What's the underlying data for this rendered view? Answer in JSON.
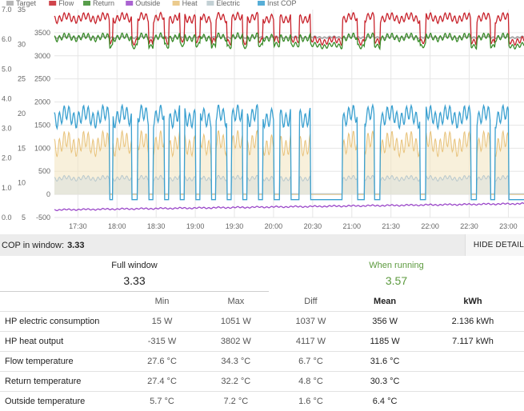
{
  "chart_data": {
    "type": "line",
    "legend": [
      {
        "name": "Target",
        "color": "#aaaaaa"
      },
      {
        "name": "Flow",
        "color": "#c8232c"
      },
      {
        "name": "Return",
        "color": "#3a8c2a"
      },
      {
        "name": "Outside",
        "color": "#9b48c9"
      },
      {
        "name": "Heat",
        "color": "#e8c27a"
      },
      {
        "name": "Electric",
        "color": "#b8c8cc"
      },
      {
        "name": "Inst COP",
        "color": "#3aa0d0"
      }
    ],
    "x_ticks": [
      "17:30",
      "18:00",
      "18:30",
      "19:00",
      "19:30",
      "20:00",
      "20:30",
      "21:00",
      "21:30",
      "22:00",
      "22:30",
      "23:00"
    ],
    "x_range": [
      "17:12",
      "23:12"
    ],
    "y_axis_cop": {
      "range": [
        0,
        7
      ],
      "ticks": [
        "0.0",
        "1.0",
        "2.0",
        "3.0",
        "4.0",
        "5.0",
        "6.0",
        "7.0"
      ]
    },
    "y_axis_temp": {
      "range": [
        5,
        35
      ],
      "ticks": [
        "5",
        "10",
        "15",
        "20",
        "25",
        "30",
        "35"
      ]
    },
    "y_axis_power": {
      "range": [
        -500,
        4000
      ],
      "ticks": [
        "-500",
        "0",
        "500",
        "1000",
        "1500",
        "2000",
        "2500",
        "3000",
        "3500"
      ]
    },
    "running_periods": [
      [
        "17:12",
        "17:42"
      ],
      [
        "17:42",
        "17:54"
      ],
      [
        "17:57",
        "18:11"
      ],
      [
        "18:16",
        "18:24"
      ],
      [
        "18:28",
        "18:36"
      ],
      [
        "18:40",
        "18:48"
      ],
      [
        "18:52",
        "19:00"
      ],
      [
        "19:04",
        "19:12"
      ],
      [
        "19:16",
        "19:24"
      ],
      [
        "19:28",
        "19:36"
      ],
      [
        "19:40",
        "19:48"
      ],
      [
        "19:52",
        "20:00"
      ],
      [
        "20:05",
        "20:13"
      ],
      [
        "20:20",
        "20:28"
      ],
      [
        "20:53",
        "21:04"
      ],
      [
        "21:10",
        "21:17"
      ],
      [
        "21:22",
        "21:52"
      ],
      [
        "21:57",
        "22:31"
      ],
      [
        "22:36",
        "22:46"
      ],
      [
        "22:50",
        "23:00"
      ]
    ],
    "series": [
      {
        "name": "Target",
        "note": "flat ~31 °C"
      },
      {
        "name": "Flow",
        "running_value": 33.8,
        "unit": "°C"
      },
      {
        "name": "Return",
        "running_value": 31.0,
        "unit": "°C"
      },
      {
        "name": "Outside",
        "start": 6.1,
        "end": 7.0,
        "unit": "°C"
      },
      {
        "name": "Heat",
        "running_value": 1100,
        "unit": "W"
      },
      {
        "name": "Electric",
        "running_value": 350,
        "unit": "W"
      },
      {
        "name": "Inst COP",
        "running_value": 3.4
      }
    ]
  },
  "cop_window": {
    "label": "COP in window:",
    "value": "3.33",
    "button": "HIDE DETAIL"
  },
  "summary": {
    "full": {
      "label": "Full window",
      "value": "3.33"
    },
    "running": {
      "label": "When running",
      "value": "3.57"
    }
  },
  "table": {
    "headers": [
      "",
      "Min",
      "Max",
      "Diff",
      "Mean",
      "kWh"
    ],
    "rows": [
      [
        "HP electric consumption",
        "15 W",
        "1051 W",
        "1037 W",
        "356 W",
        "2.136 kWh"
      ],
      [
        "HP heat output",
        "-315 W",
        "3802 W",
        "4117 W",
        "1185 W",
        "7.117 kWh"
      ],
      [
        "Flow temperature",
        "27.6 °C",
        "34.3 °C",
        "6.7 °C",
        "31.6 °C",
        ""
      ],
      [
        "Return temperature",
        "27.4 °C",
        "32.2 °C",
        "4.8 °C",
        "30.3 °C",
        ""
      ],
      [
        "Outside temperature",
        "5.7 °C",
        "7.2 °C",
        "1.6 °C",
        "6.4 °C",
        ""
      ]
    ]
  }
}
